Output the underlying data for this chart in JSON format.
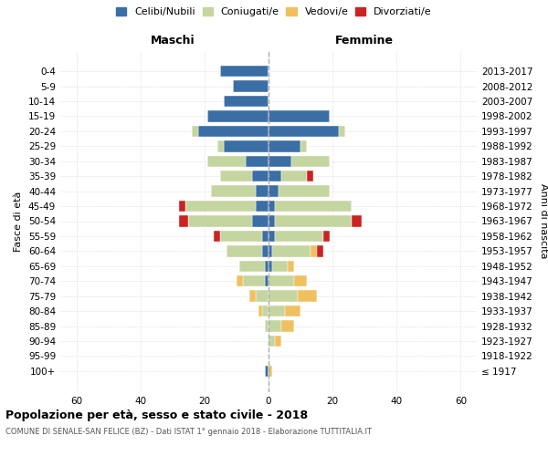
{
  "age_groups": [
    "100+",
    "95-99",
    "90-94",
    "85-89",
    "80-84",
    "75-79",
    "70-74",
    "65-69",
    "60-64",
    "55-59",
    "50-54",
    "45-49",
    "40-44",
    "35-39",
    "30-34",
    "25-29",
    "20-24",
    "15-19",
    "10-14",
    "5-9",
    "0-4"
  ],
  "birth_years": [
    "≤ 1917",
    "1918-1922",
    "1923-1927",
    "1928-1932",
    "1933-1937",
    "1938-1942",
    "1943-1947",
    "1948-1952",
    "1953-1957",
    "1958-1962",
    "1963-1967",
    "1968-1972",
    "1973-1977",
    "1978-1982",
    "1983-1987",
    "1988-1992",
    "1993-1997",
    "1998-2002",
    "2003-2007",
    "2008-2012",
    "2013-2017"
  ],
  "male_celibi": [
    1,
    0,
    0,
    0,
    0,
    0,
    1,
    1,
    2,
    2,
    5,
    4,
    4,
    5,
    7,
    14,
    22,
    19,
    14,
    11,
    15
  ],
  "male_coniugati": [
    0,
    0,
    0,
    1,
    2,
    4,
    7,
    8,
    11,
    13,
    20,
    22,
    14,
    10,
    12,
    2,
    2,
    0,
    0,
    0,
    0
  ],
  "male_vedovi": [
    0,
    0,
    0,
    0,
    1,
    2,
    2,
    0,
    0,
    0,
    0,
    0,
    0,
    0,
    0,
    0,
    0,
    0,
    0,
    0,
    0
  ],
  "male_divorziati": [
    0,
    0,
    0,
    0,
    0,
    0,
    0,
    0,
    0,
    2,
    3,
    2,
    0,
    0,
    0,
    0,
    0,
    0,
    0,
    0,
    0
  ],
  "female_nubili": [
    0,
    0,
    0,
    0,
    0,
    0,
    0,
    1,
    1,
    2,
    2,
    2,
    3,
    4,
    7,
    10,
    22,
    19,
    0,
    0,
    0
  ],
  "female_coniugate": [
    0,
    0,
    2,
    4,
    5,
    9,
    8,
    5,
    12,
    15,
    24,
    24,
    16,
    8,
    12,
    2,
    2,
    0,
    0,
    0,
    0
  ],
  "female_vedove": [
    1,
    0,
    2,
    4,
    5,
    6,
    4,
    2,
    2,
    0,
    0,
    0,
    0,
    0,
    0,
    0,
    0,
    0,
    0,
    0,
    0
  ],
  "female_divorziate": [
    0,
    0,
    0,
    0,
    0,
    0,
    0,
    0,
    2,
    2,
    3,
    0,
    0,
    2,
    0,
    0,
    0,
    0,
    0,
    0,
    0
  ],
  "color_celibi": "#3a6ea5",
  "color_coniugati": "#c5d5a0",
  "color_vedovi": "#f0c060",
  "color_divorziati": "#cc2222",
  "xlim": 65,
  "title": "Popolazione per età, sesso e stato civile - 2018",
  "subtitle": "COMUNE DI SENALE-SAN FELICE (BZ) - Dati ISTAT 1° gennaio 2018 - Elaborazione TUTTITALIA.IT",
  "ylabel_left": "Fasce di età",
  "ylabel_right": "Anni di nascita",
  "legend_labels": [
    "Celibi/Nubili",
    "Coniugati/e",
    "Vedovi/e",
    "Divorziati/e"
  ],
  "label_maschi": "Maschi",
  "label_femmine": "Femmine"
}
